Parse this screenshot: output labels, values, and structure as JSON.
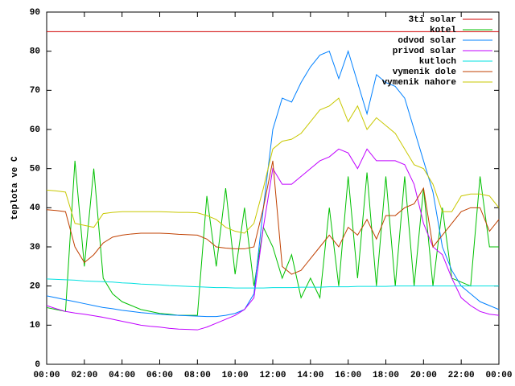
{
  "chart_data": {
    "type": "line",
    "ylabel": "teplota ve C",
    "x": [
      0,
      0.5,
      1,
      1.5,
      2,
      2.5,
      3,
      3.5,
      4,
      4.5,
      5,
      5.5,
      6,
      6.5,
      7,
      7.5,
      8,
      8.5,
      9,
      9.5,
      10,
      10.5,
      11,
      11.5,
      12,
      12.5,
      13,
      13.5,
      14,
      14.5,
      15,
      15.5,
      16,
      16.5,
      17,
      17.5,
      18,
      18.5,
      19,
      19.5,
      20,
      20.5,
      21,
      21.5,
      22,
      22.5,
      23,
      23.5,
      24
    ],
    "xlim": [
      0,
      24
    ],
    "xticks": [
      {
        "value": 0,
        "label": "00:00"
      },
      {
        "value": 2,
        "label": "02:00"
      },
      {
        "value": 4,
        "label": "04:00"
      },
      {
        "value": 6,
        "label": "06:00"
      },
      {
        "value": 8,
        "label": "08:00"
      },
      {
        "value": 10,
        "label": "10:00"
      },
      {
        "value": 12,
        "label": "12:00"
      },
      {
        "value": 14,
        "label": "14:00"
      },
      {
        "value": 16,
        "label": "16:00"
      },
      {
        "value": 18,
        "label": "18:00"
      },
      {
        "value": 20,
        "label": "20:00"
      },
      {
        "value": 22,
        "label": "22:00"
      },
      {
        "value": 24,
        "label": "00:00"
      }
    ],
    "ylim": [
      0,
      90
    ],
    "yticks": [
      0,
      10,
      20,
      30,
      40,
      50,
      60,
      70,
      80,
      90
    ],
    "legend": "top-right",
    "series": [
      {
        "name": "3ti solar",
        "color": "#d00000",
        "values": [
          85,
          85,
          85,
          85,
          85,
          85,
          85,
          85,
          85,
          85,
          85,
          85,
          85,
          85,
          85,
          85,
          85,
          85,
          85,
          85,
          85,
          85,
          85,
          85,
          85,
          85,
          85,
          85,
          85,
          85,
          85,
          85,
          85,
          85,
          85,
          85,
          85,
          85,
          85,
          85,
          85,
          85,
          85,
          85,
          85,
          85,
          85,
          85,
          85
        ]
      },
      {
        "name": "kotel",
        "color": "#00c000",
        "values": [
          14.5,
          14,
          13.5,
          52,
          25,
          50,
          22,
          18,
          16,
          15,
          14,
          13.5,
          13,
          12.8,
          12.5,
          12.5,
          12.5,
          43,
          25,
          45,
          23,
          40,
          20,
          35,
          30,
          22,
          28,
          17,
          22,
          17,
          40,
          20,
          48,
          22,
          49,
          20,
          48,
          20,
          48,
          20,
          45,
          20,
          40,
          22,
          21,
          20,
          48,
          30,
          30
        ]
      },
      {
        "name": "odvod solar",
        "color": "#0080ff",
        "values": [
          17.5,
          17,
          16.5,
          16,
          15.5,
          15,
          14.5,
          14.2,
          13.8,
          13.5,
          13.2,
          13,
          12.8,
          12.6,
          12.5,
          12.4,
          12.3,
          12.2,
          12.2,
          12.5,
          13,
          14,
          18,
          40,
          60,
          68,
          67,
          72,
          76,
          79,
          80,
          73,
          80,
          72,
          64,
          74,
          72,
          71,
          68,
          60,
          52,
          44,
          30,
          24,
          20,
          18,
          16,
          15,
          14
        ]
      },
      {
        "name": "privod solar",
        "color": "#c000ff",
        "values": [
          15,
          14.2,
          13.5,
          13.1,
          12.8,
          12.4,
          12,
          11.5,
          11,
          10.5,
          10,
          9.7,
          9.5,
          9.2,
          9,
          8.9,
          8.8,
          9.5,
          10.5,
          11.5,
          12.5,
          14,
          17,
          35,
          50,
          46,
          46,
          48,
          50,
          52,
          53,
          55,
          54,
          50,
          55,
          52,
          52,
          52,
          51,
          46,
          36,
          30,
          28,
          22,
          17,
          15,
          13.5,
          12.8,
          12.5
        ]
      },
      {
        "name": "kutloch",
        "color": "#00e0e0",
        "values": [
          21.8,
          21.7,
          21.6,
          21.5,
          21.3,
          21.2,
          21.1,
          21,
          20.8,
          20.7,
          20.5,
          20.4,
          20.3,
          20.1,
          20,
          19.9,
          19.8,
          19.7,
          19.6,
          19.6,
          19.5,
          19.5,
          19.5,
          19.5,
          19.6,
          19.6,
          19.6,
          19.7,
          19.7,
          19.7,
          19.8,
          19.8,
          19.8,
          19.9,
          19.9,
          19.9,
          19.9,
          20,
          20,
          20,
          20,
          20,
          20,
          20,
          20,
          20,
          20,
          20,
          20
        ]
      },
      {
        "name": "vymenik dole",
        "color": "#c04000",
        "values": [
          39.5,
          39.3,
          39,
          30,
          26,
          28,
          31,
          32.5,
          33,
          33.3,
          33.5,
          33.5,
          33.5,
          33.4,
          33.2,
          33.1,
          33,
          32,
          30,
          29.7,
          29.5,
          29.5,
          30,
          40,
          52,
          25,
          23,
          24,
          27,
          30,
          33,
          30,
          35,
          33,
          37,
          32,
          38,
          38,
          40,
          41,
          45,
          30,
          33,
          36,
          39,
          40,
          40,
          34,
          37
        ]
      },
      {
        "name": "vymenik nahore",
        "color": "#c8c800",
        "values": [
          44.5,
          44.3,
          44,
          36,
          35.5,
          35,
          38.5,
          38.8,
          39,
          39,
          39,
          39,
          39,
          38.9,
          38.8,
          38.8,
          38.7,
          38,
          37,
          35,
          34,
          33.5,
          36,
          45,
          55,
          57,
          57.5,
          59,
          62,
          65,
          66,
          68,
          62,
          66,
          60,
          63,
          61,
          59,
          55,
          51,
          50,
          46,
          39,
          39,
          43,
          43.5,
          43.5,
          43,
          40
        ]
      }
    ]
  }
}
